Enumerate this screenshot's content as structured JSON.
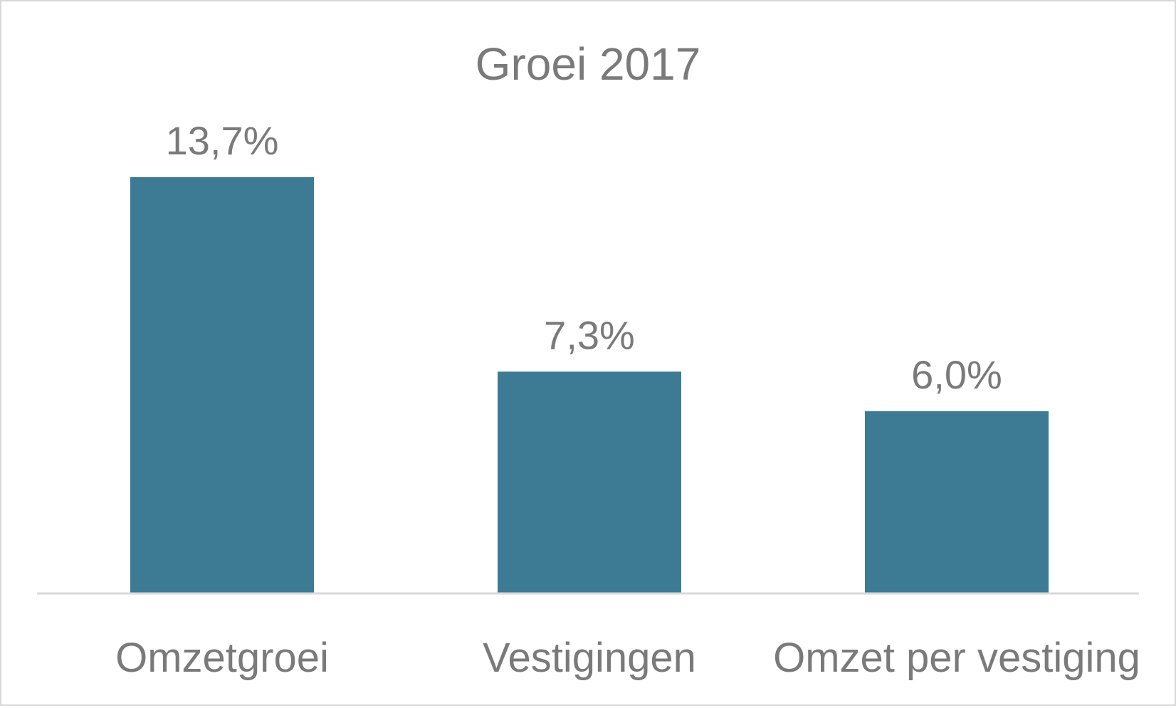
{
  "chart_data": {
    "type": "bar",
    "title": "Groei 2017",
    "categories": [
      "Omzetgroei",
      "Vestigingen",
      "Omzet per vestiging"
    ],
    "values": [
      13.7,
      7.3,
      6.0
    ],
    "data_labels": [
      "13,7%",
      "7,3%",
      "6,0%"
    ],
    "ylim": [
      0,
      16
    ],
    "grid": false,
    "legend": "none",
    "colors": {
      "bar": "#3c7b93",
      "text": "#7a7a7a",
      "axis": "#d9d9d9"
    }
  }
}
